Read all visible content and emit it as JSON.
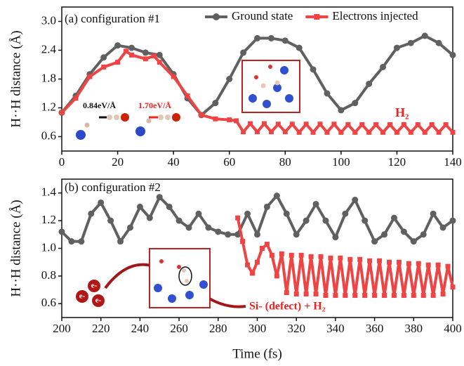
{
  "chart_data": [
    {
      "type": "line",
      "ylabel": "H··H distance (Å)",
      "legend": "top-right",
      "grid": false,
      "xlim": [
        0,
        140
      ],
      "xticks": [
        0,
        20,
        40,
        60,
        80,
        100,
        120,
        140
      ],
      "ylim": [
        0.3,
        3.3
      ],
      "yticks": [
        0.6,
        1.2,
        1.8,
        2.4,
        {
          "value": 3,
          "label": "3.0"
        }
      ],
      "annotations": [
        {
          "text": "(a) configuration #1"
        },
        {
          "text": "0.84eV/Å"
        },
        {
          "text": "1.70eV/Å"
        },
        {
          "text": "H₂"
        }
      ],
      "series": [
        {
          "name": "Ground state",
          "color": "#606060",
          "marker": "circle",
          "x": [
            0,
            5,
            10,
            15,
            20,
            25,
            30,
            35,
            40,
            45,
            50,
            55,
            60,
            65,
            70,
            75,
            80,
            85,
            90,
            95,
            100,
            105,
            110,
            115,
            120,
            125,
            130,
            135,
            140
          ],
          "values": [
            1.1,
            1.45,
            1.9,
            2.25,
            2.5,
            2.45,
            2.35,
            2.3,
            1.9,
            1.4,
            1.05,
            1.3,
            1.8,
            2.35,
            2.65,
            2.65,
            2.6,
            2.45,
            2.0,
            1.5,
            1.15,
            1.3,
            1.7,
            2.05,
            2.45,
            2.55,
            2.7,
            2.55,
            2.3
          ]
        },
        {
          "name": "Electrons injected",
          "color": "#ee4444",
          "marker": "square",
          "x": [
            0,
            5,
            10,
            15,
            20,
            23,
            25,
            30,
            33,
            35,
            40,
            45,
            50,
            55,
            60,
            62.5,
            65,
            67.5,
            70,
            72.5,
            75,
            77.5,
            80,
            82.5,
            85,
            87.5,
            90,
            92.5,
            95,
            97.5,
            100,
            102.5,
            105,
            107.5,
            110,
            112.5,
            115,
            117.5,
            120,
            122.5,
            125,
            127.5,
            130,
            132.5,
            135,
            137.5,
            140
          ],
          "values": [
            1.1,
            1.4,
            1.85,
            2.05,
            2.15,
            2.38,
            2.3,
            2.22,
            2.28,
            2.15,
            1.85,
            1.45,
            1.05,
            0.97,
            0.95,
            0.93,
            0.7,
            0.87,
            0.7,
            0.87,
            0.7,
            0.86,
            0.7,
            0.86,
            0.69,
            0.86,
            0.69,
            0.86,
            0.69,
            0.86,
            0.69,
            0.85,
            0.69,
            0.85,
            0.69,
            0.85,
            0.69,
            0.85,
            0.69,
            0.85,
            0.69,
            0.85,
            0.69,
            0.85,
            0.69,
            0.85,
            0.69
          ]
        }
      ]
    },
    {
      "type": "line",
      "ylabel": "H··H distance (Å)",
      "xlabel": "Time (fs)",
      "grid": false,
      "xlim": [
        200,
        400
      ],
      "xticks": [
        200,
        220,
        240,
        260,
        280,
        300,
        320,
        340,
        360,
        380,
        400
      ],
      "ylim": [
        0.5,
        1.5
      ],
      "yticks": [
        0.6,
        0.8,
        {
          "value": 1,
          "label": "1.0"
        },
        1.2,
        1.4
      ],
      "annotations": [
        {
          "text": "(b) configuration #2"
        },
        {
          "text": "Si- (defect) + H₂"
        },
        {
          "text": "e-"
        },
        {
          "text": "e-"
        },
        {
          "text": "e-"
        }
      ],
      "series": [
        {
          "color": "#606060",
          "marker": "circle",
          "x": [
            200,
            205,
            210,
            215,
            220,
            225,
            230,
            235,
            240,
            245,
            250,
            255,
            260,
            265,
            270,
            275,
            280,
            285,
            290,
            295,
            300,
            305,
            310,
            315,
            320,
            325,
            330,
            335,
            340,
            345,
            350,
            355,
            360,
            365,
            370,
            375,
            380,
            385,
            390,
            395,
            400
          ],
          "values": [
            1.12,
            1.05,
            1.05,
            1.25,
            1.33,
            1.2,
            1.05,
            1.15,
            1.3,
            1.22,
            1.37,
            1.3,
            1.2,
            1.15,
            1.25,
            1.15,
            1.12,
            1.1,
            1.1,
            1.25,
            1.1,
            1.3,
            1.38,
            1.25,
            1.1,
            1.2,
            1.32,
            1.2,
            1.08,
            1.25,
            1.35,
            1.2,
            1.05,
            1.1,
            1.22,
            1.12,
            1.05,
            1.1,
            1.25,
            1.15,
            1.2
          ]
        },
        {
          "color": "#ee4444",
          "marker": "square",
          "x": [
            290,
            292.5,
            295,
            297.5,
            300,
            302.5,
            305,
            307.5,
            310,
            312.5,
            315,
            317.5,
            320,
            322.5,
            325,
            327.5,
            330,
            332.5,
            335,
            337.5,
            340,
            342.5,
            345,
            347.5,
            350,
            352.5,
            355,
            357.5,
            360,
            362.5,
            365,
            367.5,
            370,
            372.5,
            375,
            377.5,
            380,
            382.5,
            385,
            387.5,
            390,
            392.5,
            395,
            397.5,
            400
          ],
          "values": [
            1.22,
            1.05,
            0.88,
            0.82,
            0.9,
            1.0,
            1.03,
            0.95,
            0.8,
            0.96,
            0.68,
            0.95,
            0.67,
            0.95,
            0.67,
            0.94,
            0.67,
            0.94,
            0.66,
            0.93,
            0.66,
            0.93,
            0.66,
            0.92,
            0.66,
            0.92,
            0.66,
            0.91,
            0.66,
            0.91,
            0.66,
            0.9,
            0.66,
            0.9,
            0.66,
            0.89,
            0.66,
            0.89,
            0.66,
            0.88,
            0.66,
            0.88,
            0.67,
            0.87,
            0.72
          ]
        }
      ]
    }
  ]
}
